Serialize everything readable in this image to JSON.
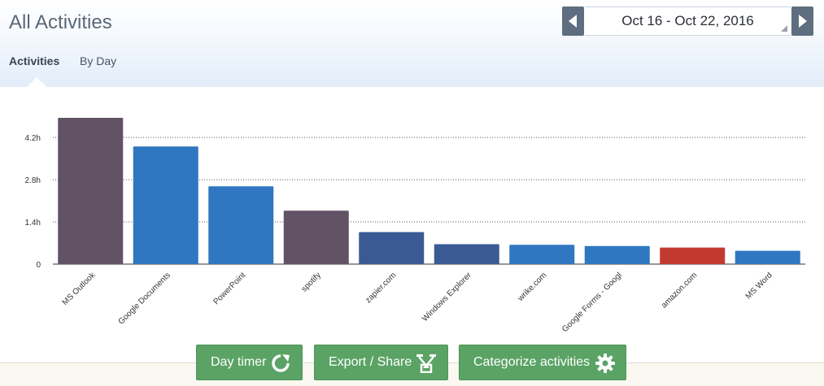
{
  "header": {
    "title": "All Activities",
    "tabs": [
      {
        "label": "Activities",
        "active": true
      },
      {
        "label": "By Day",
        "active": false
      }
    ]
  },
  "date_range": {
    "label": "Oct 16 - Oct 22, 2016",
    "prev_icon": "chevron-left-icon",
    "next_icon": "chevron-right-icon"
  },
  "chart_data": {
    "type": "bar",
    "title": "",
    "xlabel": "",
    "ylabel": "",
    "ylim": [
      0,
      5.2
    ],
    "yticks": [
      {
        "value": 0,
        "label": "0"
      },
      {
        "value": 1.4,
        "label": "1.4h"
      },
      {
        "value": 2.8,
        "label": "2.8h"
      },
      {
        "value": 4.2,
        "label": "4.2h"
      }
    ],
    "grid": true,
    "categories": [
      "MS Outlook",
      "Google Documents",
      "PowerPoint",
      "spotify",
      "zapier.com",
      "Windows Explorer",
      "wrike.com",
      "Google Forms - Googl",
      "amazon.com",
      "MS Word"
    ],
    "values": [
      4.85,
      3.9,
      2.58,
      1.77,
      1.06,
      0.66,
      0.64,
      0.6,
      0.55,
      0.44
    ],
    "colors": [
      "#625266",
      "#2f77c0",
      "#2f77c0",
      "#625266",
      "#3a5a94",
      "#3a5a94",
      "#2f77c0",
      "#2f77c0",
      "#c2392f",
      "#2f77c0"
    ]
  },
  "actions": [
    {
      "label": "Day timer",
      "icon": "refresh-icon"
    },
    {
      "label": "Export / Share",
      "icon": "export-icon"
    },
    {
      "label": "Categorize activities",
      "icon": "gear-icon"
    }
  ]
}
